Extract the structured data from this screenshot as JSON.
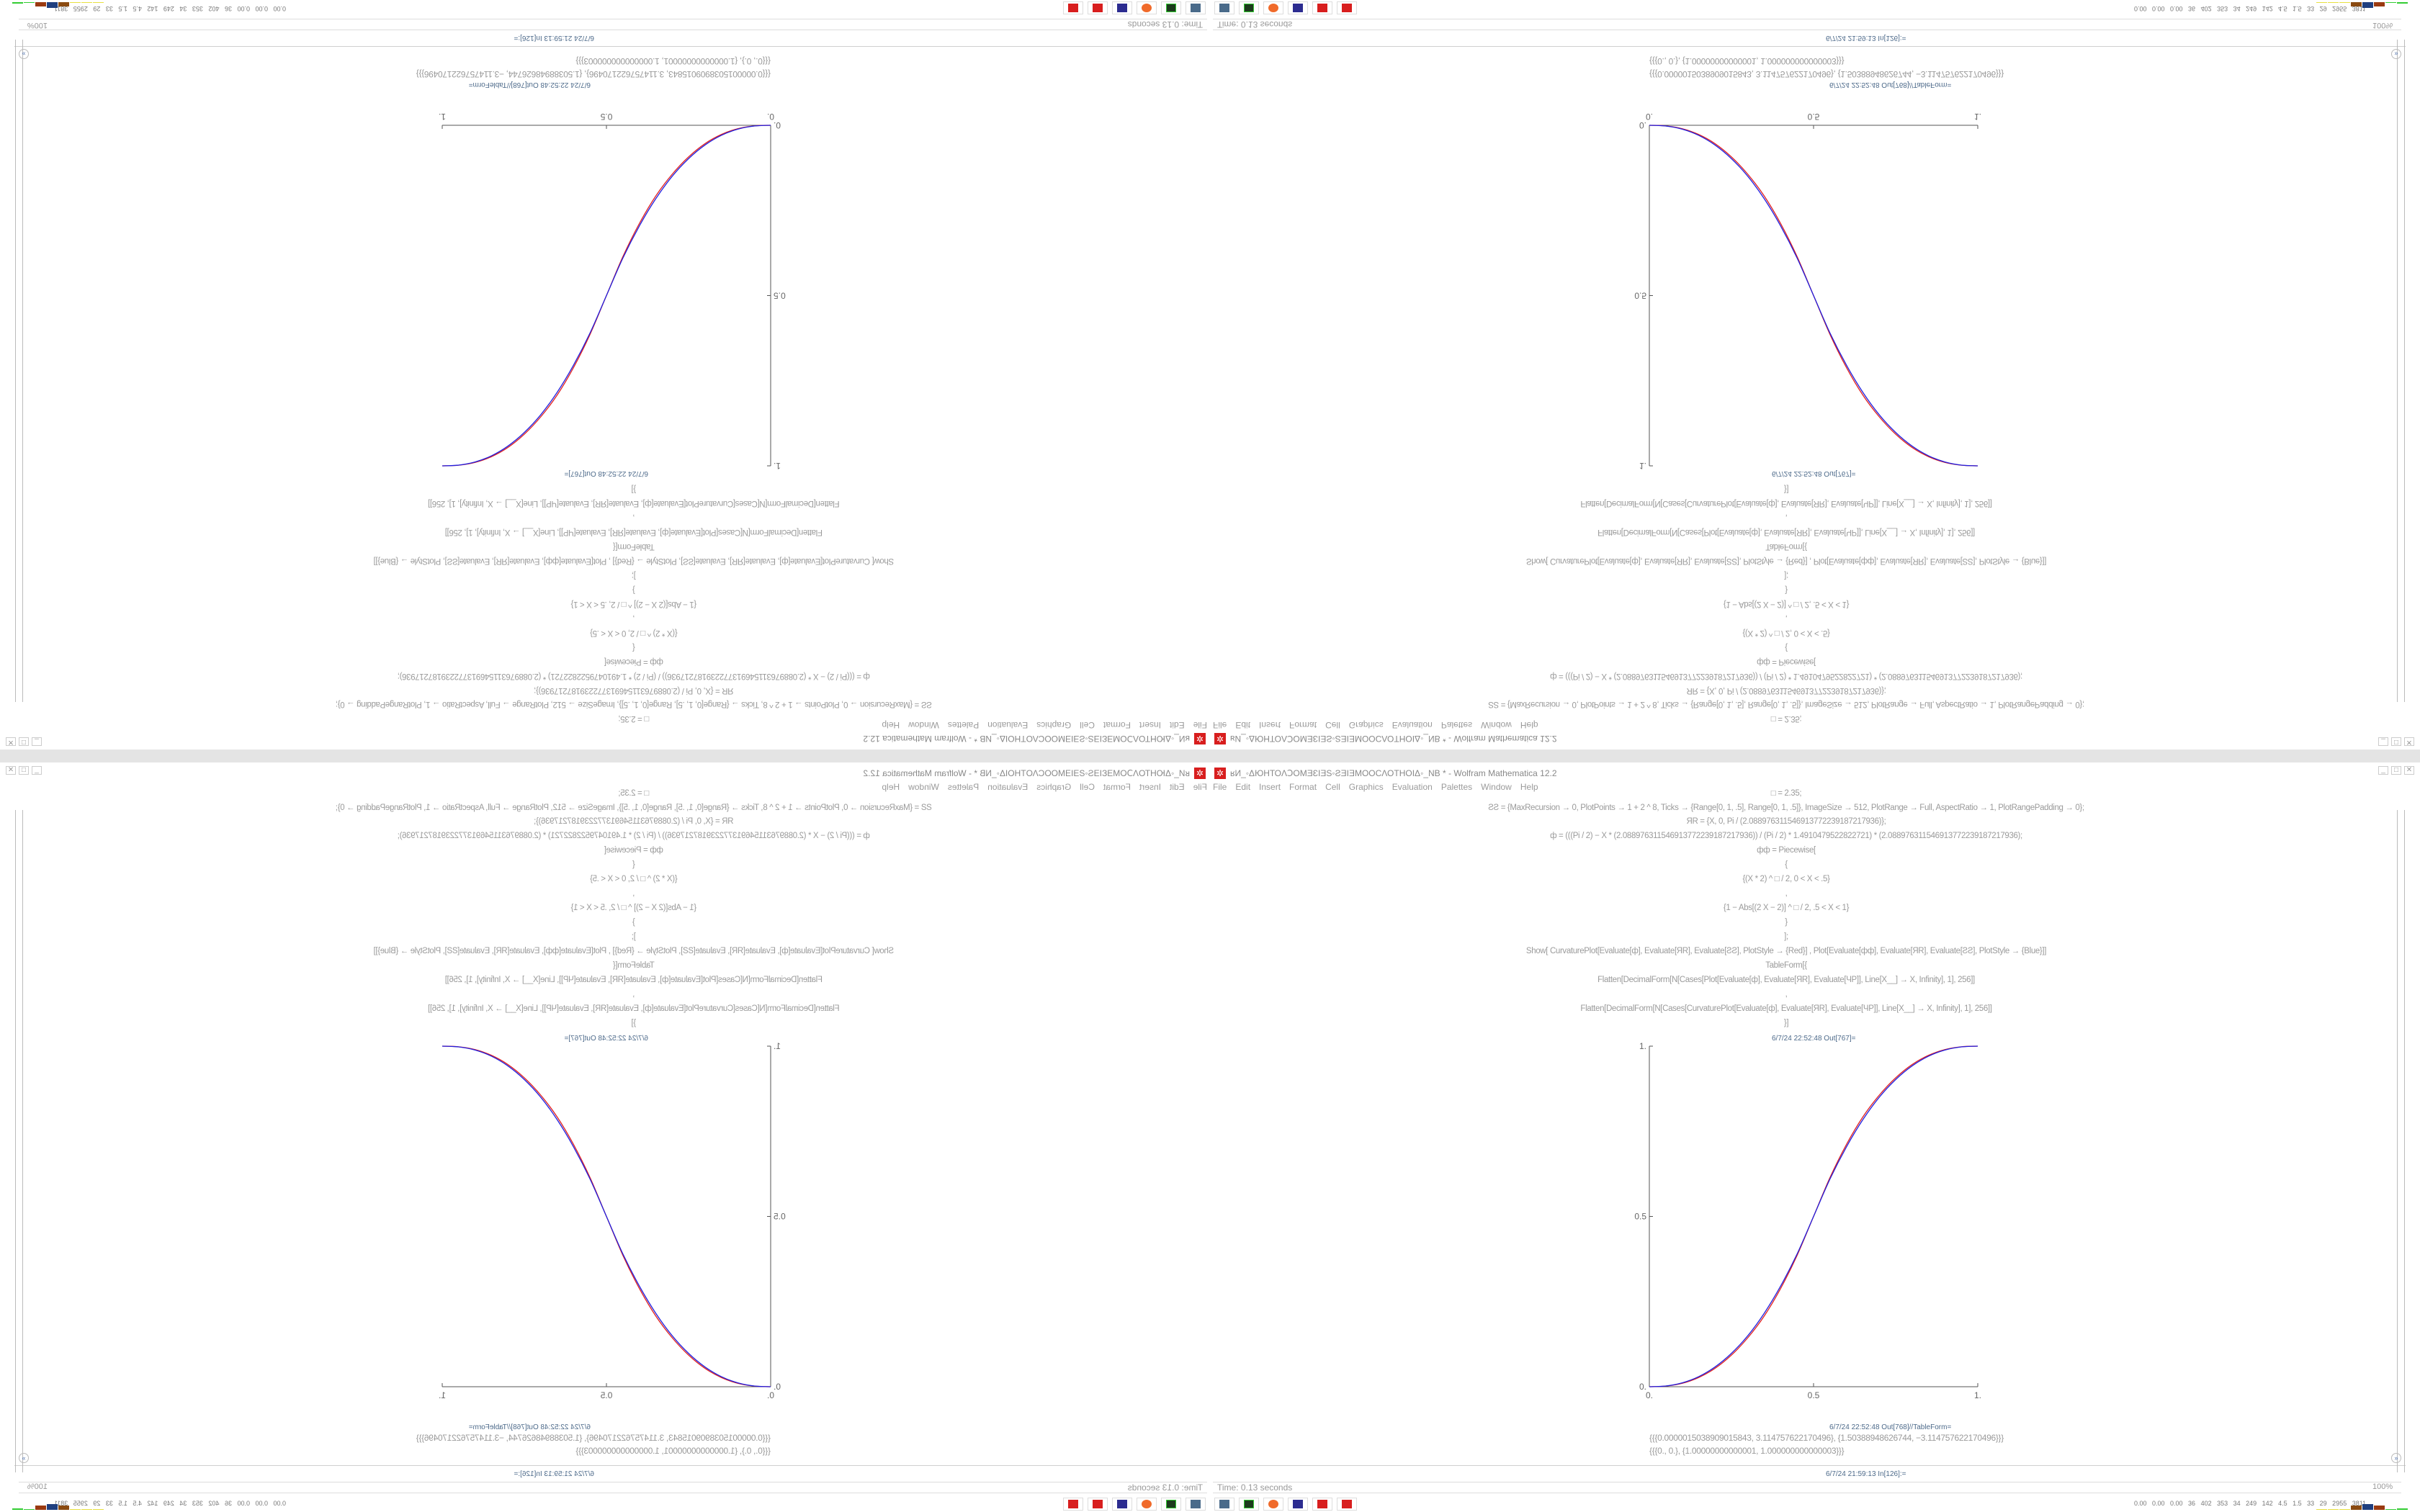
{
  "window": {
    "title": "ʁИ_◦ΔЮНТОΛↃОМƎƐIƎS◦ƧƎIƎΜΟΟCΛΟΤΗΟIΔ◦_NB * - Wolfram Mathematica 12.2",
    "menu": [
      "File",
      "Edit",
      "Insert",
      "Format",
      "Cell",
      "Graphics",
      "Evaluation",
      "Palettes",
      "Window",
      "Help"
    ],
    "controls": {
      "minimize": "_",
      "maximize": "□",
      "close": "✕"
    }
  },
  "notebook": {
    "input_lines": [
      "□ = 2.35;",
      "ƧƧ = {MaxRecursion → 0, PlotPoints → 1 + 2 ^ 8, Ticks → {Range[0, 1, .5], Range[0, 1, .5]}, ImageSize → 512, PlotRange → Full, AspectRatio → 1, PlotRangePadding → 0};",
      "ЯR = {X, 0, Pi / (2.0889763115469137722391872179​36)};",
      "ф = (((Pi / 2) − X * (2.088976311546913772239187217936)) / (Pi / 2) * 1.4910479522822721) * (2.088976311546913772239187217936);",
      "фф = Piecewise[",
      "{",
      "{(X * 2) ^ □ / 2, 0 < X < .5}",
      ",",
      "{1 − Abs[(2 X − 2)] ^ □ / 2, .5 < X < 1}",
      "}",
      "];",
      "Show[   CurvaturePlot[Evaluate[ф], Evaluate[ЯR], Evaluate[ƧƧ], PlotStyle → {Red}]   ,   Plot[Evaluate[фф], Evaluate[ЯR], Evaluate[ƧƧ],  PlotStyle → {Blue}]]",
      "TableForm[{",
      "Flatten[DecimalForm[N[Cases[Plot[Evaluate[ф], Evaluate[ЯR], Evaluate[ЧP]], Line[X__] → X, Infinity], 1], 256]]",
      ",",
      "Flatten[DecimalForm[N[Cases[CurvaturePlot[Evaluate[ф], Evaluate[ЯR], Evaluate[ЧP]], Line[X__] → X, Infinity], 1], 256]]",
      "}]"
    ],
    "out_plot_label": "6/7/24 22:52:48 Out[767]=",
    "out_table_label": "6/7/24 22:52:48 Out[768]//TableForm=",
    "out_table_rows": [
      "{{{0.0000015038909015843, 3.114757622170496}, {1.50388948626744, −3.114757622170496}}}",
      "{{{0., 0.}, {1.00000000000001, 1.000000000000003}}}"
    ],
    "next_input_label": "6/7/24 21:59:13 In[126]:="
  },
  "status": {
    "time": "Time: 0.13 seconds",
    "zoom": "100%"
  },
  "taskbar": {
    "icons": [
      "remote-desktop-icon",
      "terminal-icon",
      "firefox-icon",
      "floppy-64-icon",
      "mathematica-icon",
      "mathematica-icon"
    ],
    "stats": "0.00 0.00 0.00 36 402 353 34 249 142 4.5 1.5 33 29 2955 3811"
  },
  "chart_data": {
    "type": "line",
    "title": "",
    "xlim": [
      0,
      1
    ],
    "ylim": [
      0,
      1
    ],
    "x_ticks": [
      "0.",
      "0.5",
      "1."
    ],
    "y_ticks": [
      "0.",
      "0.5",
      "1."
    ],
    "grid": false,
    "x": [
      0,
      0.05,
      0.1,
      0.15,
      0.2,
      0.25,
      0.3,
      0.35,
      0.4,
      0.45,
      0.5,
      0.55,
      0.6,
      0.65,
      0.7,
      0.75,
      0.8,
      0.85,
      0.9,
      0.95,
      1
    ],
    "series": [
      {
        "color": "#e02020",
        "values": [
          0,
          0.0018,
          0.01,
          0.027,
          0.054,
          0.093,
          0.144,
          0.208,
          0.289,
          0.386,
          0.5,
          0.614,
          0.711,
          0.792,
          0.856,
          0.907,
          0.946,
          0.973,
          0.99,
          0.9982,
          1
        ]
      },
      {
        "color": "#2020e0",
        "values": [
          0,
          0.0022,
          0.0114,
          0.0295,
          0.058,
          0.098,
          0.15,
          0.216,
          0.296,
          0.39,
          0.5,
          0.61,
          0.704,
          0.784,
          0.85,
          0.902,
          0.942,
          0.9705,
          0.9886,
          0.9978,
          1
        ]
      }
    ]
  }
}
